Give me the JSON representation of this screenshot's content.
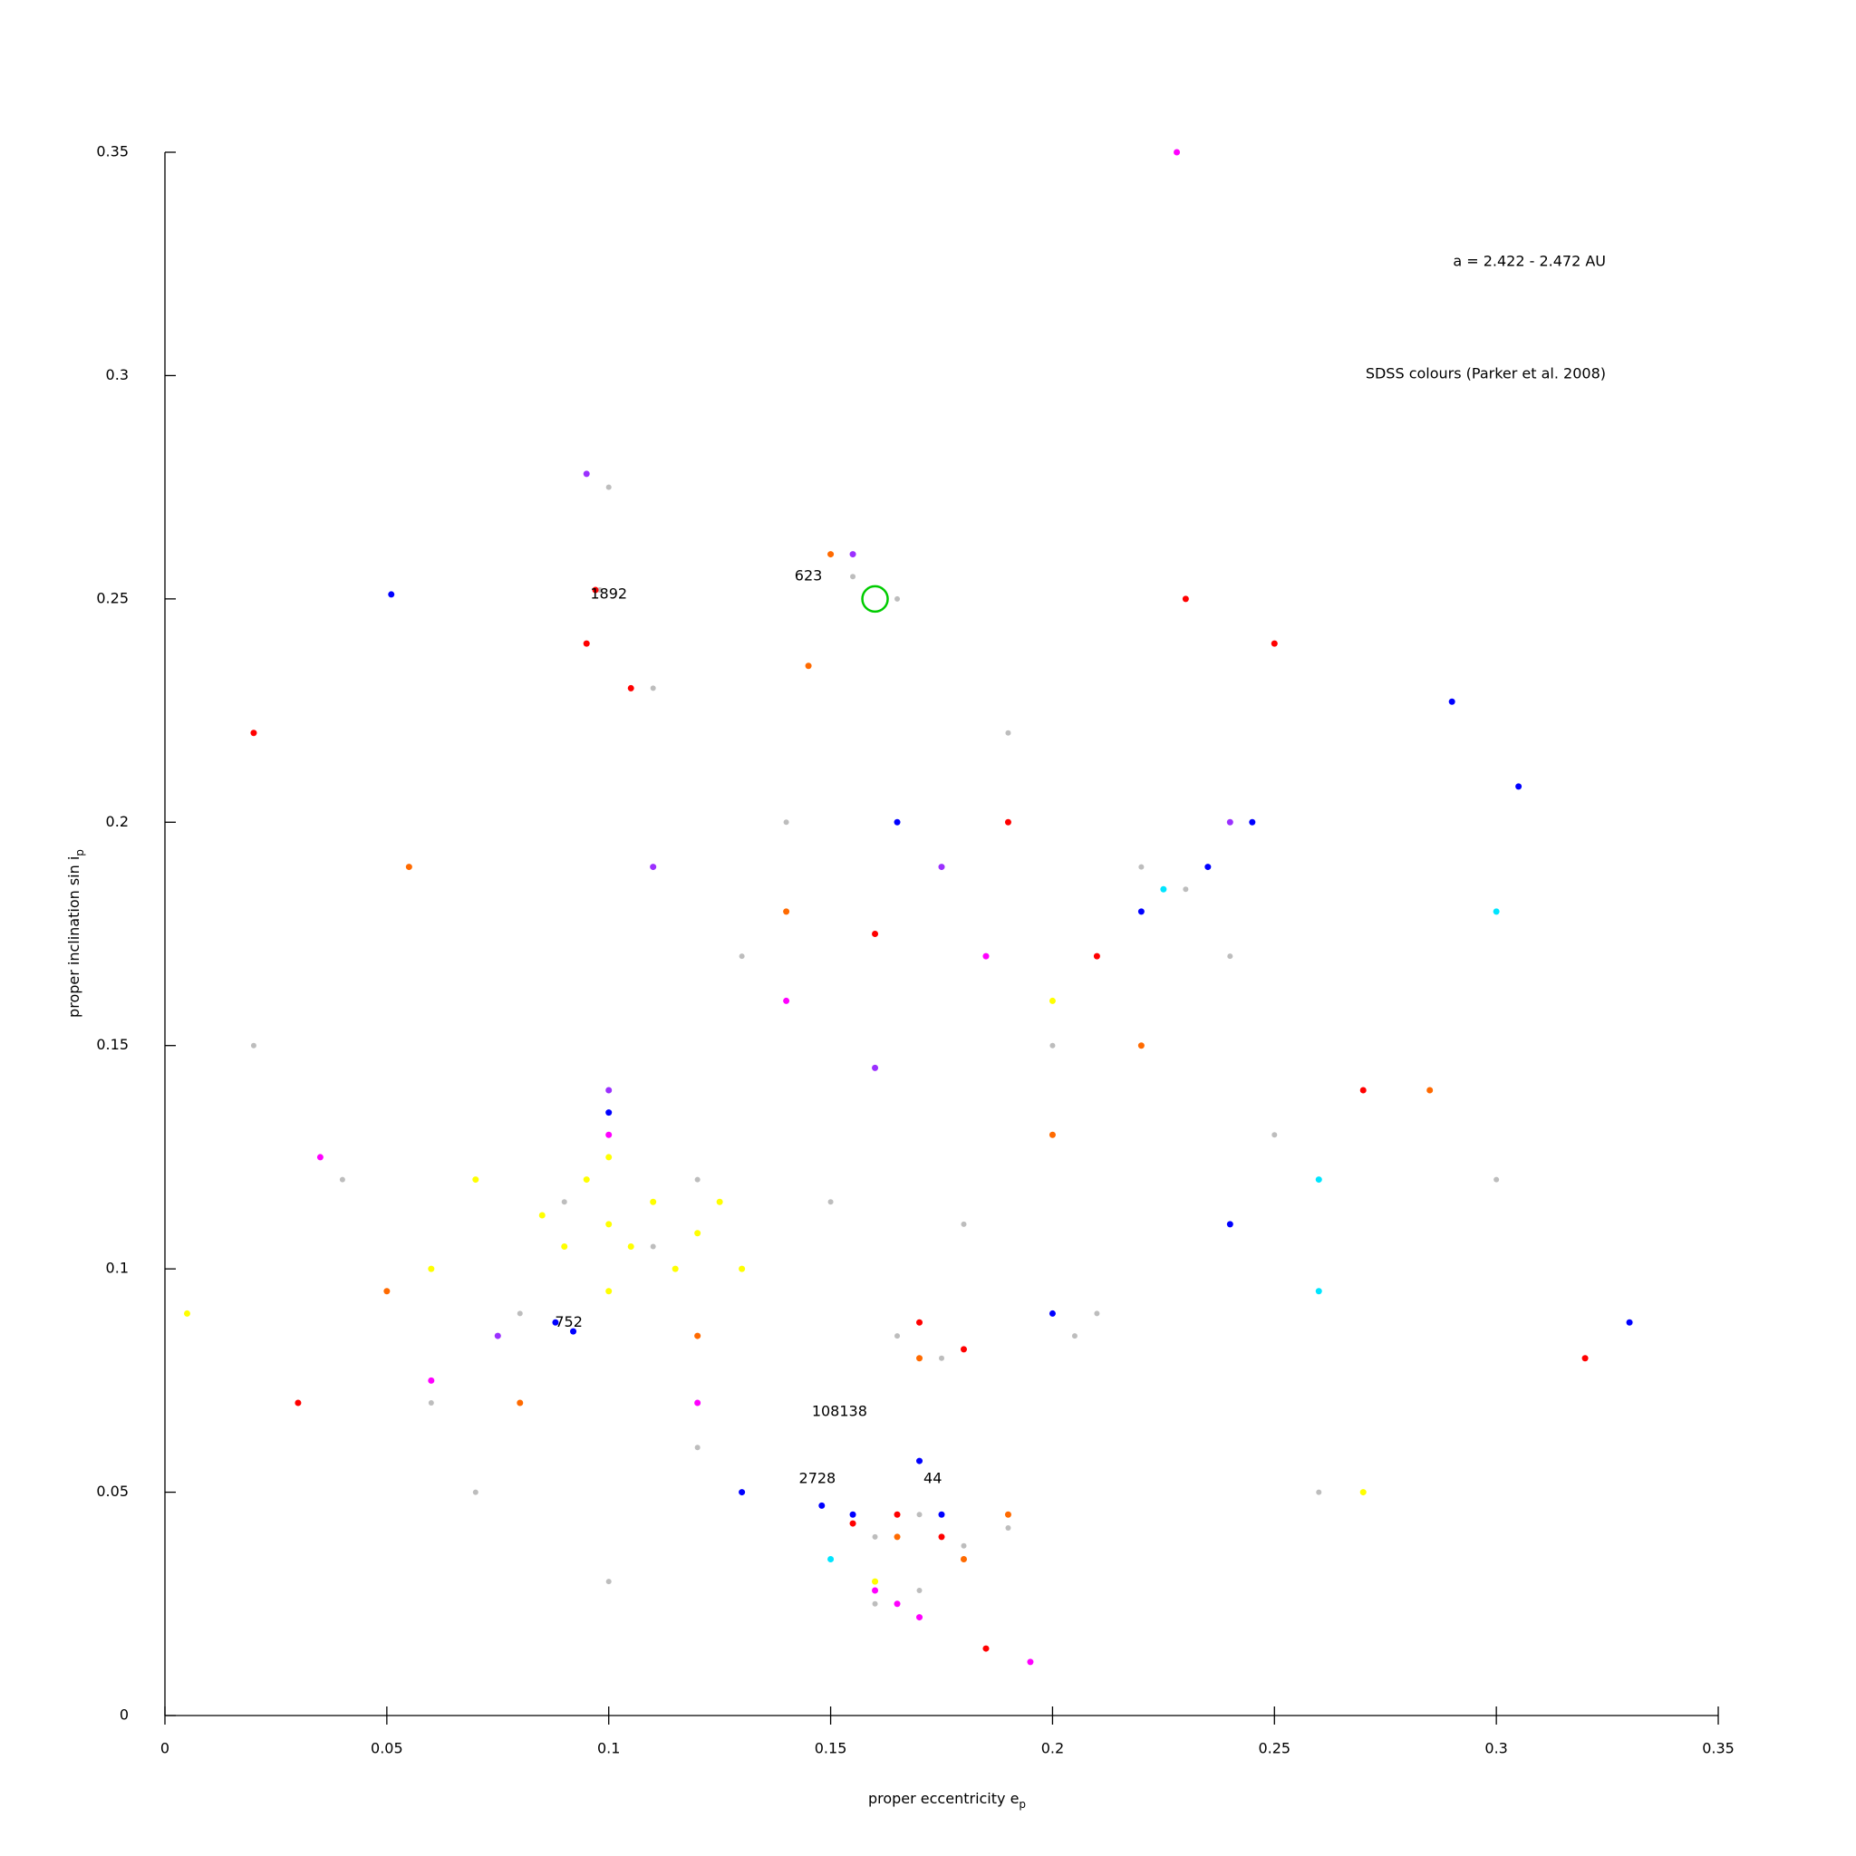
{
  "chart_data": {
    "type": "scatter",
    "info_lines": [
      "a = 2.422 - 2.472 AU",
      "SDSS colours (Parker et al. 2008)"
    ],
    "xlabel": "proper eccentricity e",
    "xlabel_sub": "p",
    "ylabel": "proper inclination sin i",
    "ylabel_sub": "p",
    "xlim": [
      0,
      0.35
    ],
    "ylim": [
      0,
      0.35
    ],
    "xticks": [
      0,
      0.05,
      0.1,
      0.15,
      0.2,
      0.25,
      0.3,
      0.35
    ],
    "yticks": [
      0,
      0.05,
      0.1,
      0.15,
      0.2,
      0.25,
      0.3,
      0.35
    ],
    "series": [
      {
        "color": "#bdbdbd",
        "x": [
          0.1,
          0.09,
          0.11,
          0.12,
          0.095,
          0.1,
          0.098,
          0.155,
          0.165,
          0.16,
          0.17,
          0.18,
          0.19,
          0.16,
          0.17,
          0.185,
          0.205,
          0.21,
          0.165,
          0.175,
          0.22,
          0.23,
          0.24,
          0.2,
          0.14,
          0.13,
          0.06,
          0.07,
          0.04,
          0.15,
          0.08,
          0.25,
          0.3,
          0.02,
          0.18,
          0.12,
          0.1,
          0.26,
          0.19,
          0.11
        ],
        "y": [
          0.11,
          0.115,
          0.105,
          0.12,
          0.278,
          0.275,
          0.252,
          0.255,
          0.25,
          0.04,
          0.045,
          0.038,
          0.042,
          0.025,
          0.028,
          0.015,
          0.085,
          0.09,
          0.085,
          0.08,
          0.19,
          0.185,
          0.17,
          0.15,
          0.2,
          0.17,
          0.07,
          0.05,
          0.12,
          0.115,
          0.09,
          0.13,
          0.12,
          0.15,
          0.11,
          0.06,
          0.03,
          0.05,
          0.22,
          0.23
        ]
      },
      {
        "color": "#ffff00",
        "x": [
          0.1,
          0.105,
          0.11,
          0.095,
          0.115,
          0.12,
          0.09,
          0.1,
          0.085,
          0.125,
          0.13,
          0.1,
          0.07,
          0.06,
          0.2,
          0.005,
          0.27,
          0.16
        ],
        "y": [
          0.11,
          0.105,
          0.115,
          0.12,
          0.1,
          0.108,
          0.105,
          0.125,
          0.112,
          0.115,
          0.1,
          0.095,
          0.12,
          0.1,
          0.16,
          0.09,
          0.05,
          0.03
        ]
      },
      {
        "color": "#ff6a00",
        "x": [
          0.165,
          0.18,
          0.19,
          0.17,
          0.15,
          0.055,
          0.14,
          0.2,
          0.08,
          0.12,
          0.22,
          0.285,
          0.05,
          0.145
        ],
        "y": [
          0.04,
          0.035,
          0.045,
          0.08,
          0.26,
          0.19,
          0.18,
          0.13,
          0.07,
          0.085,
          0.15,
          0.14,
          0.095,
          0.235
        ]
      },
      {
        "color": "#ff0000",
        "x": [
          0.097,
          0.165,
          0.175,
          0.155,
          0.18,
          0.17,
          0.185,
          0.02,
          0.23,
          0.25,
          0.21,
          0.27,
          0.32,
          0.095,
          0.16,
          0.105,
          0.03,
          0.19
        ],
        "y": [
          0.252,
          0.045,
          0.04,
          0.043,
          0.082,
          0.088,
          0.015,
          0.22,
          0.25,
          0.24,
          0.17,
          0.14,
          0.08,
          0.24,
          0.175,
          0.23,
          0.07,
          0.2
        ]
      },
      {
        "color": "#ff00ff",
        "x": [
          0.165,
          0.16,
          0.17,
          0.195,
          0.1,
          0.14,
          0.06,
          0.185,
          0.228,
          0.035,
          0.12
        ],
        "y": [
          0.025,
          0.028,
          0.022,
          0.012,
          0.13,
          0.16,
          0.075,
          0.17,
          0.35,
          0.125,
          0.07
        ]
      },
      {
        "color": "#9b30ff",
        "x": [
          0.095,
          0.155,
          0.1,
          0.175,
          0.24,
          0.16,
          0.075,
          0.11
        ],
        "y": [
          0.278,
          0.26,
          0.14,
          0.19,
          0.2,
          0.145,
          0.085,
          0.19
        ]
      },
      {
        "color": "#0000ff",
        "x": [
          0.088,
          0.092,
          0.148,
          0.155,
          0.175,
          0.17,
          0.051,
          0.165,
          0.22,
          0.235,
          0.245,
          0.24,
          0.305,
          0.29,
          0.33,
          0.2,
          0.13,
          0.1
        ],
        "y": [
          0.088,
          0.086,
          0.047,
          0.045,
          0.045,
          0.057,
          0.251,
          0.2,
          0.18,
          0.19,
          0.2,
          0.11,
          0.208,
          0.227,
          0.088,
          0.09,
          0.05,
          0.135
        ]
      },
      {
        "color": "#00e5ff",
        "x": [
          0.3,
          0.26,
          0.15,
          0.225,
          0.26
        ],
        "y": [
          0.18,
          0.12,
          0.035,
          0.185,
          0.095
        ]
      }
    ],
    "annotations": [
      {
        "text": "623",
        "x": 0.145,
        "y": 0.255
      },
      {
        "text": "1892",
        "x": 0.1,
        "y": 0.251
      },
      {
        "text": "752",
        "x": 0.091,
        "y": 0.088
      },
      {
        "text": "108138",
        "x": 0.152,
        "y": 0.068
      },
      {
        "text": "2728",
        "x": 0.147,
        "y": 0.053
      },
      {
        "text": "44",
        "x": 0.173,
        "y": 0.053
      }
    ],
    "highlight": {
      "x": 0.16,
      "y": 0.25,
      "color": "#00cc00"
    }
  }
}
